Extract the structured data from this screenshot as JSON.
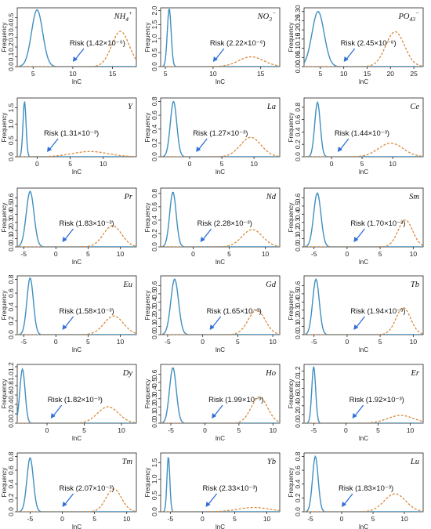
{
  "chart_data": [
    {
      "type": "line",
      "element": "NH4+",
      "risk_label": "Risk (1.42×10⁻⁶)",
      "xlabel": "lnC",
      "ylabel": "Frequency",
      "xlim": [
        3,
        18
      ],
      "ylim": [
        0,
        0.6
      ],
      "xticks": [
        5,
        10,
        15
      ],
      "yticks": [
        0,
        0.1,
        0.2,
        0.3,
        0.4,
        0.5
      ],
      "arrow_x": 10,
      "series": [
        {
          "style": "solid",
          "peak_x": 5.5,
          "peak_y": 0.58,
          "sd": 0.7
        },
        {
          "style": "dashed",
          "peak_x": 16,
          "peak_y": 0.36,
          "sd": 1.1
        }
      ]
    },
    {
      "type": "line",
      "element": "NO3−",
      "risk_label": "Risk (2.22×10⁻⁶)",
      "xlabel": "lnC",
      "ylabel": "Frequency",
      "xlim": [
        4.5,
        17
      ],
      "ylim": [
        0,
        2.1
      ],
      "xticks": [
        5,
        10,
        15
      ],
      "yticks": [
        0,
        0.5,
        1.0,
        1.5,
        2.0
      ],
      "arrow_x": 10,
      "series": [
        {
          "style": "solid",
          "peak_x": 5.4,
          "peak_y": 2.08,
          "sd": 0.2
        },
        {
          "style": "dashed",
          "peak_x": 14,
          "peak_y": 0.35,
          "sd": 1.3
        }
      ]
    },
    {
      "type": "line",
      "element": "PO43−",
      "risk_label": "Risk (2.45×10⁻⁸)",
      "xlabel": "lnC",
      "ylabel": "Frequency",
      "xlim": [
        1.5,
        27
      ],
      "ylim": [
        0,
        0.32
      ],
      "xticks": [
        5,
        10,
        15,
        20,
        25
      ],
      "yticks": [
        0,
        0.05,
        0.1,
        0.15,
        0.2,
        0.25,
        0.3
      ],
      "arrow_x": 10,
      "series": [
        {
          "style": "solid",
          "peak_x": 4.5,
          "peak_y": 0.3,
          "sd": 1.3
        },
        {
          "style": "dashed",
          "peak_x": 21,
          "peak_y": 0.19,
          "sd": 2.0
        }
      ]
    },
    {
      "type": "line",
      "element": "Y",
      "risk_label": "Risk (1.31×10⁻³)",
      "xlabel": "lnC",
      "ylabel": "Frequency",
      "xlim": [
        -3,
        15
      ],
      "ylim": [
        0,
        1.8
      ],
      "xticks": [
        0,
        5,
        10
      ],
      "yticks": [
        0,
        0.5,
        1.0,
        1.5
      ],
      "arrow_x": 1.5,
      "series": [
        {
          "style": "solid",
          "peak_x": -1.9,
          "peak_y": 1.7,
          "sd": 0.23
        },
        {
          "style": "dashed",
          "peak_x": 8,
          "peak_y": 0.16,
          "sd": 2.7
        }
      ]
    },
    {
      "type": "line",
      "element": "La",
      "risk_label": "Risk (1.27×10⁻³)",
      "xlabel": "lnC",
      "ylabel": "Frequency",
      "xlim": [
        -4.5,
        14
      ],
      "ylim": [
        0,
        0.85
      ],
      "xticks": [
        0,
        5,
        10
      ],
      "yticks": [
        0,
        0.2,
        0.4,
        0.6,
        0.8
      ],
      "arrow_x": 1,
      "series": [
        {
          "style": "solid",
          "peak_x": -2.5,
          "peak_y": 0.8,
          "sd": 0.5
        },
        {
          "style": "dashed",
          "peak_x": 9.5,
          "peak_y": 0.28,
          "sd": 1.6
        }
      ]
    },
    {
      "type": "line",
      "element": "Ce",
      "risk_label": "Risk (1.44×10⁻³)",
      "xlabel": "lnC",
      "ylabel": "Frequency",
      "xlim": [
        -4.5,
        15
      ],
      "ylim": [
        0,
        0.95
      ],
      "xticks": [
        0,
        5,
        10
      ],
      "yticks": [
        0,
        0.2,
        0.4,
        0.6,
        0.8
      ],
      "arrow_x": 1,
      "series": [
        {
          "style": "solid",
          "peak_x": -2.3,
          "peak_y": 0.88,
          "sd": 0.45
        },
        {
          "style": "dashed",
          "peak_x": 9.7,
          "peak_y": 0.22,
          "sd": 2.0
        }
      ]
    },
    {
      "type": "line",
      "element": "Pr",
      "risk_label": "Risk (1.83×10⁻³)",
      "xlabel": "lnC",
      "ylabel": "Frequency",
      "xlim": [
        -6,
        12.5
      ],
      "ylim": [
        0,
        0.72
      ],
      "xticks": [
        -5,
        0,
        5,
        10
      ],
      "yticks": [
        0,
        0.1,
        0.2,
        0.3,
        0.4,
        0.5,
        0.6
      ],
      "arrow_x": 1,
      "series": [
        {
          "style": "solid",
          "peak_x": -4,
          "peak_y": 0.68,
          "sd": 0.6
        },
        {
          "style": "dashed",
          "peak_x": 8.8,
          "peak_y": 0.26,
          "sd": 1.4
        }
      ]
    },
    {
      "type": "line",
      "element": "Nd",
      "risk_label": "Risk (2.28×10⁻³)",
      "xlabel": "lnC",
      "ylabel": "Frequency",
      "xlim": [
        -4.5,
        12
      ],
      "ylim": [
        0,
        0.88
      ],
      "xticks": [
        0,
        5,
        10
      ],
      "yticks": [
        0,
        0.2,
        0.4,
        0.6,
        0.8
      ],
      "arrow_x": 1,
      "series": [
        {
          "style": "solid",
          "peak_x": -2.8,
          "peak_y": 0.82,
          "sd": 0.45
        },
        {
          "style": "dashed",
          "peak_x": 8.2,
          "peak_y": 0.26,
          "sd": 1.4
        }
      ]
    },
    {
      "type": "line",
      "element": "Sm",
      "risk_label": "Risk (1.70×10⁻³)",
      "xlabel": "lnC",
      "ylabel": "Frequency",
      "xlim": [
        -6.5,
        11.5
      ],
      "ylim": [
        0,
        0.72
      ],
      "xticks": [
        -5,
        0,
        5,
        10
      ],
      "yticks": [
        0,
        0.1,
        0.2,
        0.3,
        0.4,
        0.5,
        0.6
      ],
      "arrow_x": 1,
      "series": [
        {
          "style": "solid",
          "peak_x": -4.5,
          "peak_y": 0.66,
          "sd": 0.55
        },
        {
          "style": "dashed",
          "peak_x": 8.8,
          "peak_y": 0.33,
          "sd": 1.1
        }
      ]
    },
    {
      "type": "line",
      "element": "Eu",
      "risk_label": "Risk (1.58×10⁻³)",
      "xlabel": "lnC",
      "ylabel": "Frequency",
      "xlim": [
        -6,
        12.5
      ],
      "ylim": [
        0,
        0.85
      ],
      "xticks": [
        -5,
        0,
        5,
        10
      ],
      "yticks": [
        0,
        0.2,
        0.4,
        0.6,
        0.8
      ],
      "arrow_x": 1,
      "series": [
        {
          "style": "solid",
          "peak_x": -4,
          "peak_y": 0.82,
          "sd": 0.5
        },
        {
          "style": "dashed",
          "peak_x": 9,
          "peak_y": 0.27,
          "sd": 1.5
        }
      ]
    },
    {
      "type": "line",
      "element": "Gd",
      "risk_label": "Risk (1.65×10⁻³)",
      "xlabel": "lnC",
      "ylabel": "Frequency",
      "xlim": [
        -6,
        11
      ],
      "ylim": [
        0,
        0.72
      ],
      "xticks": [
        -5,
        0,
        5,
        10
      ],
      "yticks": [
        0,
        0.1,
        0.2,
        0.3,
        0.4,
        0.5,
        0.6
      ],
      "arrow_x": 1,
      "series": [
        {
          "style": "solid",
          "peak_x": -4,
          "peak_y": 0.68,
          "sd": 0.55
        },
        {
          "style": "dashed",
          "peak_x": 7.7,
          "peak_y": 0.3,
          "sd": 1.2
        }
      ]
    },
    {
      "type": "line",
      "element": "Tb",
      "risk_label": "Risk (1.94×10⁻³)",
      "xlabel": "lnC",
      "ylabel": "Frequency",
      "xlim": [
        -6.5,
        11.5
      ],
      "ylim": [
        0,
        0.72
      ],
      "xticks": [
        -5,
        0,
        5,
        10
      ],
      "yticks": [
        0,
        0.1,
        0.2,
        0.3,
        0.4,
        0.5,
        0.6
      ],
      "arrow_x": 1,
      "series": [
        {
          "style": "solid",
          "peak_x": -4.7,
          "peak_y": 0.68,
          "sd": 0.5
        },
        {
          "style": "dashed",
          "peak_x": 8.5,
          "peak_y": 0.33,
          "sd": 1.1
        }
      ]
    },
    {
      "type": "line",
      "element": "Dy",
      "risk_label": "Risk (1.82×10⁻³)",
      "xlabel": "lnC",
      "ylabel": "Frequency",
      "xlim": [
        -4,
        12
      ],
      "ylim": [
        0,
        1.25
      ],
      "xticks": [
        -5,
        0,
        5,
        10
      ],
      "yticks": [
        0,
        0.2,
        0.4,
        0.6,
        0.8,
        1.0,
        1.2
      ],
      "arrow_x": 0.5,
      "series": [
        {
          "style": "solid",
          "peak_x": -3.3,
          "peak_y": 1.15,
          "sd": 0.35
        },
        {
          "style": "dashed",
          "peak_x": 8.2,
          "peak_y": 0.35,
          "sd": 1.4
        }
      ]
    },
    {
      "type": "line",
      "element": "Ho",
      "risk_label": "Risk (1.99×10⁻³)",
      "xlabel": "lnC",
      "ylabel": "Frequency",
      "xlim": [
        -6.5,
        11
      ],
      "ylim": [
        0,
        0.72
      ],
      "xticks": [
        -5,
        0,
        5,
        10
      ],
      "yticks": [
        0,
        0.1,
        0.2,
        0.3,
        0.4,
        0.5,
        0.6
      ],
      "arrow_x": 1,
      "series": [
        {
          "style": "solid",
          "peak_x": -4.7,
          "peak_y": 0.68,
          "sd": 0.5
        },
        {
          "style": "dashed",
          "peak_x": 8,
          "peak_y": 0.32,
          "sd": 1.2
        }
      ]
    },
    {
      "type": "line",
      "element": "Er",
      "risk_label": "Risk (1.92×10⁻³)",
      "xlabel": "lnC",
      "ylabel": "Frequency",
      "xlim": [
        -6.5,
        12
      ],
      "ylim": [
        0,
        1.35
      ],
      "xticks": [
        -5,
        0,
        5,
        10
      ],
      "yticks": [
        0,
        0.2,
        0.4,
        0.6,
        0.8,
        1.0,
        1.2
      ],
      "arrow_x": 1,
      "series": [
        {
          "style": "solid",
          "peak_x": -5,
          "peak_y": 1.3,
          "sd": 0.3
        },
        {
          "style": "dashed",
          "peak_x": 8.5,
          "peak_y": 0.18,
          "sd": 2.0
        }
      ]
    },
    {
      "type": "line",
      "element": "Tm",
      "risk_label": "Risk (2.07×10⁻³)",
      "xlabel": "lnC",
      "ylabel": "Frequency",
      "xlim": [
        -7,
        11.5
      ],
      "ylim": [
        0,
        0.85
      ],
      "xticks": [
        -5,
        0,
        5,
        10
      ],
      "yticks": [
        0,
        0.2,
        0.4,
        0.6,
        0.8
      ],
      "arrow_x": 0,
      "series": [
        {
          "style": "solid",
          "peak_x": -5,
          "peak_y": 0.78,
          "sd": 0.5
        },
        {
          "style": "dashed",
          "peak_x": 8,
          "peak_y": 0.33,
          "sd": 1.2
        }
      ]
    },
    {
      "type": "line",
      "element": "Yb",
      "risk_label": "Risk (2.33×10⁻³)",
      "xlabel": "lnC",
      "ylabel": "Frequency",
      "xlim": [
        -6.5,
        12
      ],
      "ylim": [
        0,
        1.8
      ],
      "xticks": [
        -5,
        0,
        5,
        10
      ],
      "yticks": [
        0,
        0.5,
        1.0,
        1.5
      ],
      "arrow_x": 0.5,
      "series": [
        {
          "style": "solid",
          "peak_x": -5.3,
          "peak_y": 1.7,
          "sd": 0.22
        },
        {
          "style": "dashed",
          "peak_x": 8,
          "peak_y": 0.13,
          "sd": 2.5
        }
      ]
    },
    {
      "type": "line",
      "element": "Lu",
      "risk_label": "Risk (1.83×10⁻³)",
      "xlabel": "lnC",
      "ylabel": "Frequency",
      "xlim": [
        -6,
        13
      ],
      "ylim": [
        0,
        0.85
      ],
      "xticks": [
        -5,
        0,
        5,
        10
      ],
      "yticks": [
        0,
        0.2,
        0.4,
        0.6,
        0.8
      ],
      "arrow_x": 0,
      "series": [
        {
          "style": "solid",
          "peak_x": -4.2,
          "peak_y": 0.8,
          "sd": 0.45
        },
        {
          "style": "dashed",
          "peak_x": 8.5,
          "peak_y": 0.26,
          "sd": 1.7
        }
      ]
    }
  ]
}
